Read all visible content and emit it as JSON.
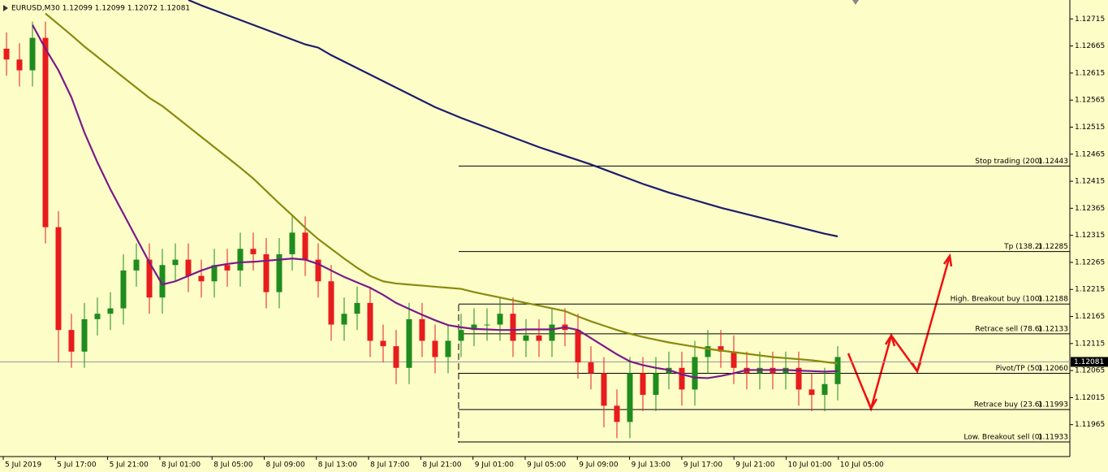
{
  "chart_data": {
    "type": "candlestick",
    "title": "EURUSD,M30  1.12099 1.12099 1.12072 1.12081",
    "x_labels": [
      "5 Jul 2019",
      "5 Jul 17:00",
      "5 Jul 21:00",
      "8 Jul 01:00",
      "8 Jul 05:00",
      "8 Jul 09:00",
      "8 Jul 13:00",
      "8 Jul 17:00",
      "8 Jul 21:00",
      "9 Jul 01:00",
      "9 Jul 05:00",
      "9 Jul 09:00",
      "9 Jul 13:00",
      "9 Jul 17:00",
      "9 Jul 21:00",
      "10 Jul 01:00",
      "10 Jul 05:00"
    ],
    "candles": {
      "open": [
        1.1266,
        1.1264,
        1.1262,
        1.1268,
        1.1233,
        1.1214,
        1.121,
        1.1216,
        1.1217,
        1.1218,
        1.1225,
        1.1227,
        1.122,
        1.1226,
        1.1227,
        1.1224,
        1.1223,
        1.1226,
        1.1225,
        1.1229,
        1.1228,
        1.1221,
        1.1228,
        1.1232,
        1.1227,
        1.1223,
        1.1215,
        1.1217,
        1.1219,
        1.1212,
        1.1211,
        1.1207,
        1.1216,
        1.1212,
        1.1209,
        1.1212,
        1.1214,
        1.1215,
        1.1215,
        1.1217,
        1.1212,
        1.1213,
        1.1212,
        1.1215,
        1.1214,
        1.1208,
        1.1206,
        1.12,
        1.1197,
        1.1206,
        1.1202,
        1.1206,
        1.1207,
        1.1203,
        1.1209,
        1.1211,
        1.121,
        1.1207,
        1.1206,
        1.1207,
        1.1206,
        1.1207,
        1.1203,
        1.1202,
        1.1204
      ],
      "high": [
        1.1269,
        1.1267,
        1.1271,
        1.1271,
        1.1236,
        1.1217,
        1.1219,
        1.122,
        1.1221,
        1.1228,
        1.123,
        1.123,
        1.1229,
        1.123,
        1.123,
        1.1227,
        1.1229,
        1.1229,
        1.1232,
        1.1232,
        1.1231,
        1.1231,
        1.1235,
        1.1235,
        1.123,
        1.1226,
        1.122,
        1.1222,
        1.1222,
        1.1215,
        1.1214,
        1.1219,
        1.1219,
        1.1215,
        1.1215,
        1.1217,
        1.1218,
        1.1218,
        1.122,
        1.122,
        1.1216,
        1.1216,
        1.1218,
        1.1218,
        1.1217,
        1.1211,
        1.1209,
        1.1203,
        1.1209,
        1.1209,
        1.1209,
        1.121,
        1.121,
        1.1212,
        1.1214,
        1.1214,
        1.1213,
        1.121,
        1.121,
        1.121,
        1.121,
        1.121,
        1.1206,
        1.1207,
        1.1211
      ],
      "low": [
        1.1261,
        1.1259,
        1.1259,
        1.123,
        1.1208,
        1.1207,
        1.1207,
        1.1213,
        1.1214,
        1.1215,
        1.1222,
        1.1217,
        1.1217,
        1.1223,
        1.1221,
        1.122,
        1.122,
        1.1222,
        1.1222,
        1.1225,
        1.1218,
        1.1218,
        1.1225,
        1.1224,
        1.122,
        1.1212,
        1.1212,
        1.1214,
        1.1209,
        1.1208,
        1.1204,
        1.1204,
        1.1209,
        1.1206,
        1.1206,
        1.1209,
        1.1211,
        1.1212,
        1.1212,
        1.1209,
        1.1209,
        1.1209,
        1.1209,
        1.1211,
        1.1205,
        1.1203,
        1.1196,
        1.1194,
        1.1194,
        1.1199,
        1.1199,
        1.1203,
        1.12,
        1.12,
        1.1206,
        1.1207,
        1.1204,
        1.1203,
        1.1203,
        1.1203,
        1.1203,
        1.12,
        1.1199,
        1.1199,
        1.1201
      ],
      "close": [
        1.1264,
        1.1262,
        1.1268,
        1.1233,
        1.1214,
        1.121,
        1.1216,
        1.1217,
        1.1218,
        1.1225,
        1.1227,
        1.122,
        1.1226,
        1.1227,
        1.1224,
        1.1223,
        1.1226,
        1.1225,
        1.1229,
        1.1228,
        1.1221,
        1.1228,
        1.1232,
        1.1227,
        1.1223,
        1.1215,
        1.1217,
        1.1219,
        1.1212,
        1.1211,
        1.1207,
        1.1216,
        1.1212,
        1.1209,
        1.1212,
        1.1214,
        1.1215,
        1.1215,
        1.1217,
        1.1212,
        1.1213,
        1.1212,
        1.1215,
        1.1214,
        1.1208,
        1.1206,
        1.12,
        1.1197,
        1.1206,
        1.1202,
        1.1206,
        1.1207,
        1.1203,
        1.1209,
        1.1211,
        1.121,
        1.1207,
        1.1206,
        1.1207,
        1.1206,
        1.1207,
        1.1203,
        1.1202,
        1.1204,
        1.1209
      ]
    },
    "up_color": "#1e8c1e",
    "down_color": "#e81c1c",
    "series": [
      {
        "color": "#1c1c6e",
        "values": [
          null,
          null,
          null,
          null,
          null,
          null,
          null,
          null,
          null,
          null,
          null,
          null,
          null,
          null,
          1.1275,
          1.1274,
          1.12731,
          1.12722,
          1.12713,
          1.12704,
          1.12695,
          1.12686,
          1.12677,
          1.12668,
          1.12662,
          1.12648,
          1.12636,
          1.12624,
          1.12612,
          1.126,
          1.12588,
          1.12576,
          1.12564,
          1.12552,
          1.12542,
          1.12532,
          1.12523,
          1.12514,
          1.12505,
          1.12496,
          1.12487,
          1.12478,
          1.1247,
          1.12462,
          1.12454,
          1.12446,
          1.12437,
          1.12428,
          1.12419,
          1.1241,
          1.12402,
          1.12394,
          1.12387,
          1.1238,
          1.12373,
          1.12366,
          1.1236,
          1.12354,
          1.12348,
          1.12342,
          1.12336,
          1.1233,
          1.12324,
          1.12318,
          1.12313
        ]
      },
      {
        "color": "#8a8a10",
        "values": [
          null,
          null,
          null,
          1.12725,
          1.12705,
          1.12685,
          1.12664,
          1.12645,
          1.12626,
          1.12607,
          1.12588,
          1.12569,
          1.12554,
          1.12535,
          1.12516,
          1.12497,
          1.12478,
          1.12459,
          1.1244,
          1.1242,
          1.12397,
          1.12374,
          1.12352,
          1.12329,
          1.12308,
          1.1229,
          1.12272,
          1.12255,
          1.1224,
          1.1223,
          1.12226,
          1.12224,
          1.12222,
          1.1222,
          1.12218,
          1.12216,
          1.1221,
          1.12205,
          1.122,
          1.12195,
          1.1219,
          1.12185,
          1.1218,
          1.12175,
          1.12165,
          1.12156,
          1.12148,
          1.1214,
          1.12133,
          1.12127,
          1.12122,
          1.12117,
          1.12113,
          1.12109,
          1.12105,
          1.12102,
          1.12099,
          1.12096,
          1.12093,
          1.1209,
          1.12088,
          1.12086,
          1.12084,
          1.12081,
          1.12078
        ]
      },
      {
        "color": "#7a1a8a",
        "values": [
          null,
          null,
          1.12704,
          1.1266,
          1.1262,
          1.1257,
          1.12505,
          1.1245,
          1.124,
          1.12355,
          1.1231,
          1.12265,
          1.12224,
          1.1223,
          1.1224,
          1.1225,
          1.12258,
          1.12262,
          1.12265,
          1.12266,
          1.12268,
          1.1227,
          1.12272,
          1.1227,
          1.12262,
          1.1225,
          1.12238,
          1.12228,
          1.12218,
          1.12205,
          1.1219,
          1.12179,
          1.12168,
          1.12158,
          1.12149,
          1.12145,
          1.12142,
          1.12141,
          1.1214,
          1.1214,
          1.12141,
          1.12141,
          1.12141,
          1.12145,
          1.1214,
          1.12125,
          1.1211,
          1.12095,
          1.12082,
          1.12075,
          1.1207,
          1.12066,
          1.12058,
          1.12052,
          1.12051,
          1.12055,
          1.1206,
          1.12066,
          1.12066,
          1.12066,
          1.12066,
          1.12065,
          1.12064,
          1.12063,
          1.12064
        ]
      }
    ],
    "levels": {
      "names": [
        "Stop trading (200)",
        "Tp (138.2)",
        "High. Breakout buy (100)",
        "Retrace sell (78.6)",
        "Pivot/TP (50)",
        "Retrace buy (23.6)",
        "Low. Breakout sell (0)"
      ],
      "values": [
        1.12443,
        1.12285,
        1.12188,
        1.12133,
        1.1206,
        1.11993,
        1.11933
      ],
      "value_labels": [
        "1.12443",
        "1.12285",
        "1.12188",
        "1.12133",
        "1.12060",
        "1.11993",
        "1.11933"
      ]
    },
    "current_price": 1.12081,
    "ylim": [
      1.11906,
      1.1275
    ],
    "yticks": [
      1.12715,
      1.12665,
      1.12615,
      1.12565,
      1.12515,
      1.12465,
      1.12415,
      1.12365,
      1.12315,
      1.12265,
      1.12215,
      1.12165,
      1.12115,
      1.12065,
      1.12015,
      1.11965
    ]
  }
}
